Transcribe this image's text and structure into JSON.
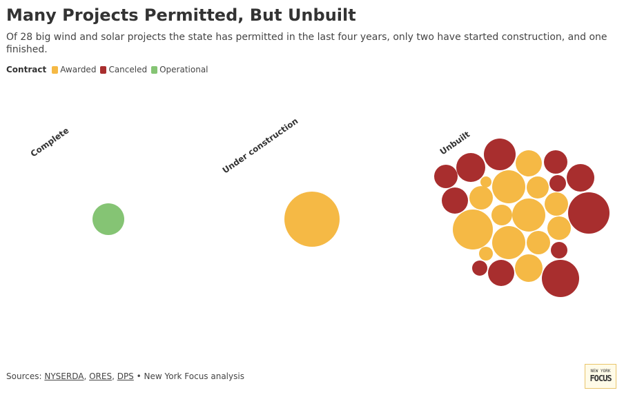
{
  "chart_data": {
    "type": "bubble",
    "title": "Many Projects Permitted, But Unbuilt",
    "subtitle": "Of 28 big wind and solar projects the state has permitted in the last four years, only two have started construction, and one finished.",
    "legend_title": "Contract",
    "series": [
      {
        "name": "Awarded",
        "color": "#f5b945"
      },
      {
        "name": "Canceled",
        "color": "#a82e2e"
      },
      {
        "name": "Operational",
        "color": "#85c474"
      }
    ],
    "groups": [
      {
        "label": "Complete",
        "contracts": [
          "Operational"
        ],
        "sizes": [
          23
        ]
      },
      {
        "label": "Under construction",
        "contracts": [
          "Awarded"
        ],
        "sizes": [
          40
        ]
      },
      {
        "label": "Unbuilt",
        "contracts": [
          "Canceled",
          "Canceled",
          "Canceled",
          "Awarded",
          "Canceled",
          "Canceled",
          "Canceled",
          "Awarded",
          "Awarded",
          "Awarded",
          "Awarded",
          "Canceled",
          "Awarded",
          "Canceled",
          "Awarded",
          "Awarded",
          "Awarded",
          "Awarded",
          "Awarded",
          "Awarded",
          "Canceled",
          "Awarded",
          "Canceled",
          "Canceled",
          "Awarded",
          "Canceled"
        ],
        "sizes": [
          23,
          21,
          17,
          19,
          17,
          20,
          12,
          8,
          24,
          16,
          17,
          19,
          17,
          30,
          15,
          24,
          29,
          17,
          24,
          17,
          12,
          10,
          11,
          19,
          20,
          27
        ]
      }
    ],
    "footer": {
      "prefix": "Sources:",
      "links": [
        "NYSERDA",
        "ORES",
        "DPS"
      ],
      "suffix": "• New York Focus analysis"
    },
    "logo": {
      "top": "NEW YORK",
      "bottom": "FOCUS"
    }
  }
}
